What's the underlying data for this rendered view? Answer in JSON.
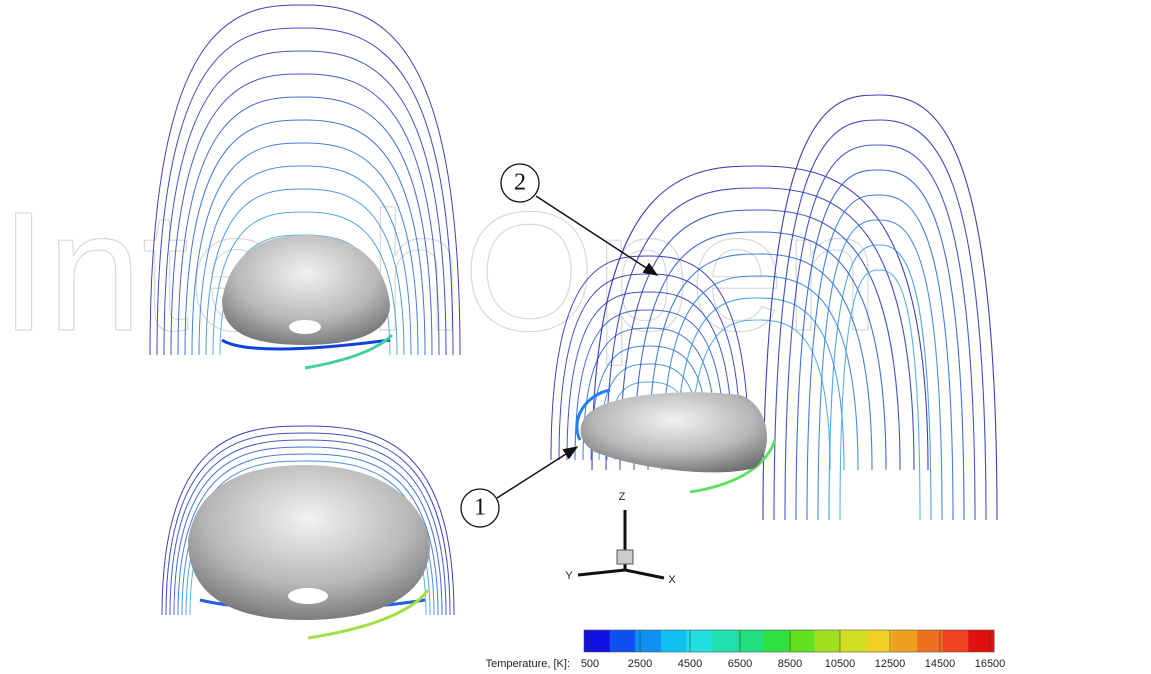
{
  "watermark": "IntechOpen",
  "callouts": [
    "1",
    "2"
  ],
  "axes": {
    "z": "Z",
    "y": "Y",
    "x": "X"
  },
  "colorbar": {
    "label": "Temperature, [K]:",
    "ticks": [
      500,
      2500,
      4500,
      6500,
      8500,
      10500,
      12500,
      14500,
      16500
    ],
    "colors": [
      "#1010e0",
      "#1050f0",
      "#1090f0",
      "#10c0f0",
      "#20e0e0",
      "#20e0b0",
      "#20e080",
      "#30e040",
      "#60e020",
      "#a0e020",
      "#d0e020",
      "#f0d020",
      "#f0a020",
      "#f07020",
      "#f04020",
      "#e01010"
    ]
  }
}
